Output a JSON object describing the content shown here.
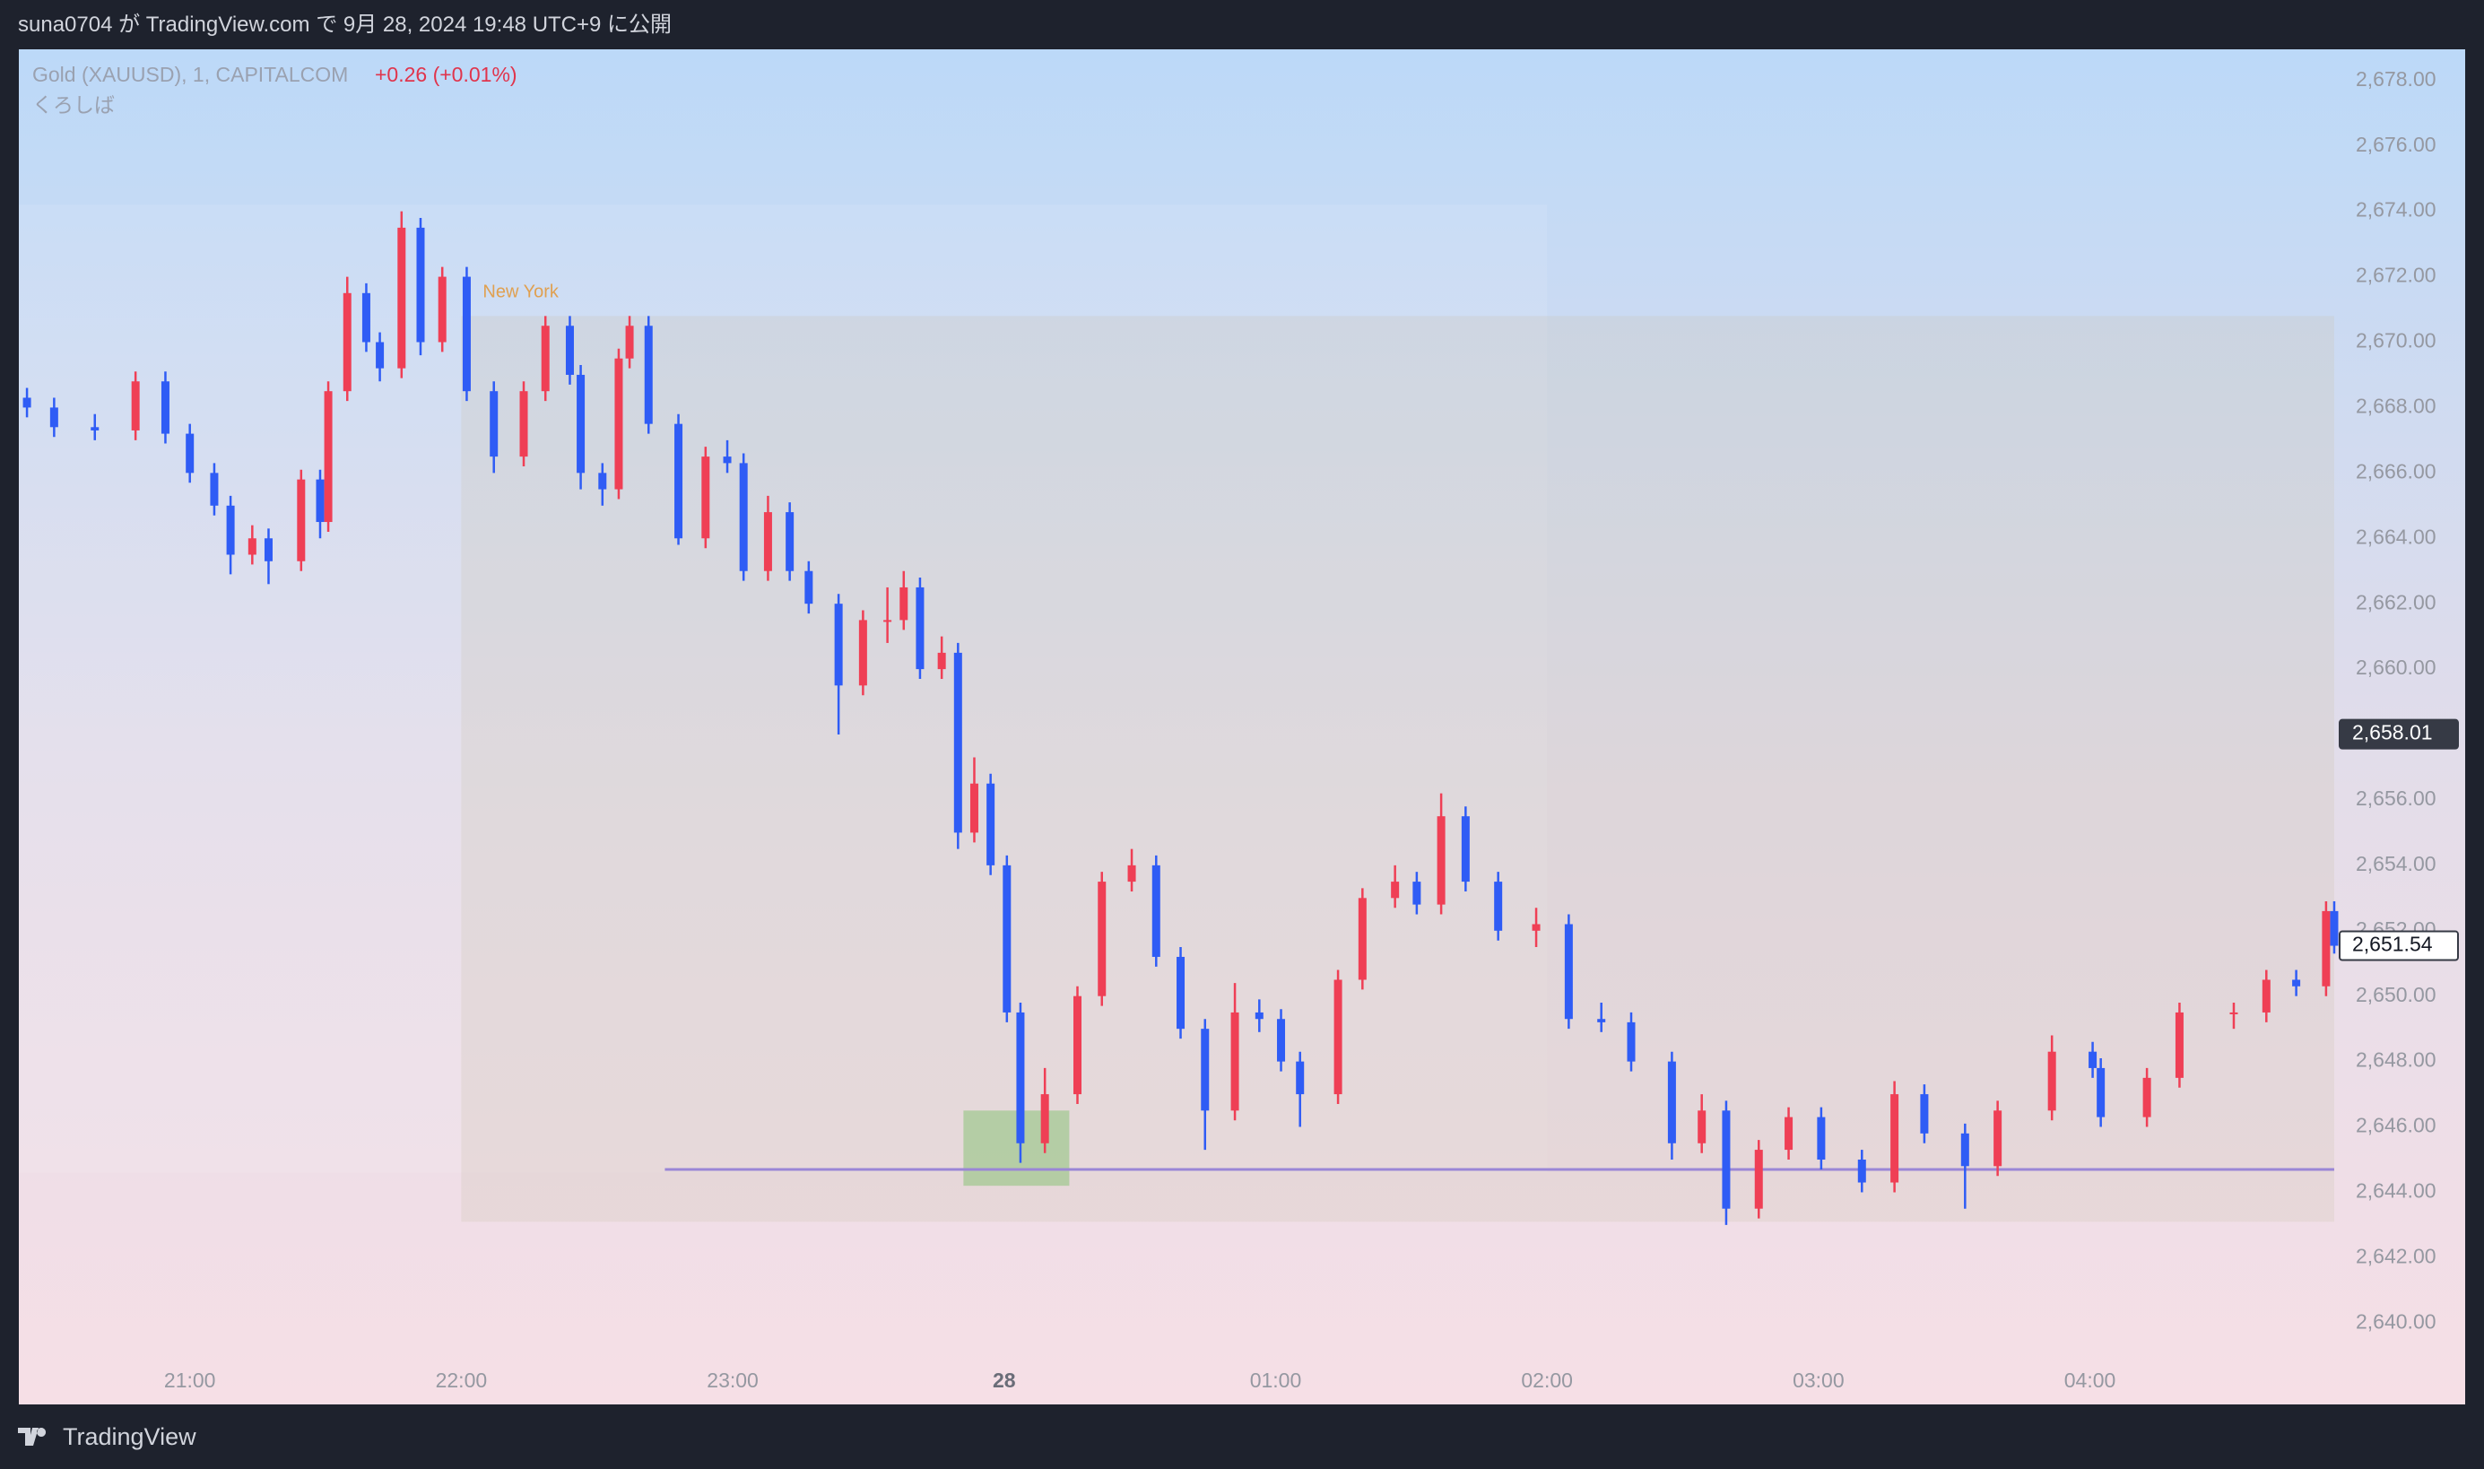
{
  "header": {
    "title": "suna0704 が TradingView.com で 9月 28, 2024 19:48 UTC+9 に公開"
  },
  "footer": {
    "brand": "TradingView"
  },
  "chart_data": {
    "type": "candlestick",
    "symbol": "Gold (XAUUSD), 1, CAPITALCOM",
    "change": "+0.26 (+0.01%)",
    "indicator": "くろしば",
    "up_color": "#ef3f55",
    "down_color": "#2f5cf5",
    "grid": false,
    "xlim": [
      20.37,
      28.91
    ],
    "ylim": [
      2638.5,
      2678.9
    ],
    "xticks": [
      {
        "value": 21,
        "label": "21:00"
      },
      {
        "value": 22,
        "label": "22:00"
      },
      {
        "value": 23,
        "label": "23:00"
      },
      {
        "value": 24,
        "label": "28"
      },
      {
        "value": 25,
        "label": "01:00"
      },
      {
        "value": 26,
        "label": "02:00"
      },
      {
        "value": 27,
        "label": "03:00"
      },
      {
        "value": 28,
        "label": "04:00"
      }
    ],
    "yticks": [
      {
        "value": 2640,
        "label": "2,640.00"
      },
      {
        "value": 2642,
        "label": "2,642.00"
      },
      {
        "value": 2644,
        "label": "2,644.00"
      },
      {
        "value": 2646,
        "label": "2,646.00"
      },
      {
        "value": 2648,
        "label": "2,648.00"
      },
      {
        "value": 2650,
        "label": "2,650.00"
      },
      {
        "value": 2652,
        "label": "2,652.00"
      },
      {
        "value": 2654,
        "label": "2,654.00"
      },
      {
        "value": 2656,
        "label": "2,656.00"
      },
      {
        "value": 2658,
        "label": "2,658.00"
      },
      {
        "value": 2660,
        "label": "2,660.00"
      },
      {
        "value": 2662,
        "label": "2,662.00"
      },
      {
        "value": 2664,
        "label": "2,664.00"
      },
      {
        "value": 2666,
        "label": "2,666.00"
      },
      {
        "value": 2668,
        "label": "2,668.00"
      },
      {
        "value": 2670,
        "label": "2,670.00"
      },
      {
        "value": 2672,
        "label": "2,672.00"
      },
      {
        "value": 2674,
        "label": "2,674.00"
      },
      {
        "value": 2676,
        "label": "2,676.00"
      },
      {
        "value": 2678,
        "label": "2,678.00"
      }
    ],
    "zones": [
      {
        "x": [
          20.37,
          26.0
        ],
        "y": [
          2644.6,
          2674.2
        ],
        "color": "rgba(255,255,255,0.10)"
      },
      {
        "x": [
          22.0,
          28.9
        ],
        "y": [
          2643.1,
          2670.8
        ],
        "color": "rgba(205,195,175,0.25)",
        "label": "New York",
        "label_color": "#e0a050"
      },
      {
        "x": [
          23.85,
          24.24
        ],
        "y": [
          2644.2,
          2646.5
        ],
        "color": "rgba(120,190,100,0.45)"
      }
    ],
    "hline": {
      "x": [
        22.75,
        28.9
      ],
      "value": 2644.7,
      "color": "#9a86d6"
    },
    "price_labels": [
      {
        "value": 2658.01,
        "label": "2,658.01",
        "bg": "#363a45",
        "fg": "#ffffff"
      },
      {
        "value": 2651.54,
        "label": "2,651.54",
        "bg": "#ffffff",
        "fg": "#131722"
      }
    ],
    "x": [
      20.4,
      20.5,
      20.65,
      20.8,
      20.91,
      21.0,
      21.09,
      21.15,
      21.23,
      21.29,
      21.41,
      21.48,
      21.51,
      21.58,
      21.65,
      21.7,
      21.78,
      21.85,
      21.93,
      22.02,
      22.12,
      22.23,
      22.31,
      22.4,
      22.44,
      22.52,
      22.58,
      22.62,
      22.69,
      22.8,
      22.9,
      22.98,
      23.04,
      23.13,
      23.21,
      23.28,
      23.39,
      23.48,
      23.57,
      23.63,
      23.69,
      23.77,
      23.83,
      23.89,
      23.95,
      24.01,
      24.06,
      24.15,
      24.27,
      24.36,
      24.47,
      24.56,
      24.65,
      24.74,
      24.85,
      24.94,
      25.02,
      25.09,
      25.23,
      25.32,
      25.44,
      25.52,
      25.61,
      25.7,
      25.82,
      25.96,
      26.08,
      26.2,
      26.31,
      26.46,
      26.57,
      26.66,
      26.78,
      26.89,
      27.01,
      27.16,
      27.28,
      27.39,
      27.54,
      27.66,
      27.86,
      28.01,
      28.04,
      28.21,
      28.33,
      28.53,
      28.65,
      28.76,
      28.87,
      28.9
    ],
    "ohlc": [
      [
        2668.3,
        2668.6,
        2667.7,
        2668.0
      ],
      [
        2668.0,
        2668.3,
        2667.1,
        2667.4
      ],
      [
        2667.4,
        2667.8,
        2667.0,
        2667.3
      ],
      [
        2667.3,
        2669.1,
        2667.0,
        2668.8
      ],
      [
        2668.8,
        2669.1,
        2666.9,
        2667.2
      ],
      [
        2667.2,
        2667.5,
        2665.7,
        2666.0
      ],
      [
        2666.0,
        2666.3,
        2664.7,
        2665.0
      ],
      [
        2665.0,
        2665.3,
        2662.9,
        2663.5
      ],
      [
        2663.5,
        2664.4,
        2663.2,
        2664.0
      ],
      [
        2664.0,
        2664.3,
        2662.6,
        2663.3
      ],
      [
        2663.3,
        2666.1,
        2663.0,
        2665.8
      ],
      [
        2665.8,
        2666.1,
        2664.0,
        2664.5
      ],
      [
        2664.5,
        2668.8,
        2664.2,
        2668.5
      ],
      [
        2668.5,
        2672.0,
        2668.2,
        2671.5
      ],
      [
        2671.5,
        2671.8,
        2669.7,
        2670.0
      ],
      [
        2670.0,
        2670.3,
        2668.8,
        2669.2
      ],
      [
        2669.2,
        2674.0,
        2668.9,
        2673.5
      ],
      [
        2673.5,
        2673.8,
        2669.6,
        2670.0
      ],
      [
        2670.0,
        2672.3,
        2669.7,
        2672.0
      ],
      [
        2672.0,
        2672.3,
        2668.2,
        2668.5
      ],
      [
        2668.5,
        2668.8,
        2666.0,
        2666.5
      ],
      [
        2666.5,
        2668.8,
        2666.2,
        2668.5
      ],
      [
        2668.5,
        2670.8,
        2668.2,
        2670.5
      ],
      [
        2670.5,
        2670.8,
        2668.7,
        2669.0
      ],
      [
        2669.0,
        2669.3,
        2665.5,
        2666.0
      ],
      [
        2666.0,
        2666.3,
        2665.0,
        2665.5
      ],
      [
        2665.5,
        2669.8,
        2665.2,
        2669.5
      ],
      [
        2669.5,
        2670.8,
        2669.2,
        2670.5
      ],
      [
        2670.5,
        2670.8,
        2667.2,
        2667.5
      ],
      [
        2667.5,
        2667.8,
        2663.8,
        2664.0
      ],
      [
        2664.0,
        2666.8,
        2663.7,
        2666.5
      ],
      [
        2666.5,
        2667.0,
        2666.0,
        2666.3
      ],
      [
        2666.3,
        2666.6,
        2662.7,
        2663.0
      ],
      [
        2663.0,
        2665.3,
        2662.7,
        2664.8
      ],
      [
        2664.8,
        2665.1,
        2662.7,
        2663.0
      ],
      [
        2663.0,
        2663.3,
        2661.7,
        2662.0
      ],
      [
        2662.0,
        2662.3,
        2658.0,
        2659.5
      ],
      [
        2659.5,
        2661.8,
        2659.2,
        2661.5
      ],
      [
        2661.5,
        2662.5,
        2660.8,
        2661.5
      ],
      [
        2661.5,
        2663.0,
        2661.2,
        2662.5
      ],
      [
        2662.5,
        2662.8,
        2659.7,
        2660.0
      ],
      [
        2660.0,
        2661.0,
        2659.7,
        2660.5
      ],
      [
        2660.5,
        2660.8,
        2654.5,
        2655.0
      ],
      [
        2655.0,
        2657.3,
        2654.7,
        2656.5
      ],
      [
        2656.5,
        2656.8,
        2653.7,
        2654.0
      ],
      [
        2654.0,
        2654.3,
        2649.2,
        2649.5
      ],
      [
        2649.5,
        2649.8,
        2644.9,
        2645.5
      ],
      [
        2645.5,
        2647.8,
        2645.2,
        2647.0
      ],
      [
        2647.0,
        2650.3,
        2646.7,
        2650.0
      ],
      [
        2650.0,
        2653.8,
        2649.7,
        2653.5
      ],
      [
        2653.5,
        2654.5,
        2653.2,
        2654.0
      ],
      [
        2654.0,
        2654.3,
        2650.9,
        2651.2
      ],
      [
        2651.2,
        2651.5,
        2648.7,
        2649.0
      ],
      [
        2649.0,
        2649.3,
        2645.3,
        2646.5
      ],
      [
        2646.5,
        2650.4,
        2646.2,
        2649.5
      ],
      [
        2649.5,
        2649.9,
        2648.9,
        2649.3
      ],
      [
        2649.3,
        2649.6,
        2647.7,
        2648.0
      ],
      [
        2648.0,
        2648.3,
        2646.0,
        2647.0
      ],
      [
        2647.0,
        2650.8,
        2646.7,
        2650.5
      ],
      [
        2650.5,
        2653.3,
        2650.2,
        2653.0
      ],
      [
        2653.0,
        2654.0,
        2652.7,
        2653.5
      ],
      [
        2653.5,
        2653.8,
        2652.5,
        2652.8
      ],
      [
        2652.8,
        2656.2,
        2652.5,
        2655.5
      ],
      [
        2655.5,
        2655.8,
        2653.2,
        2653.5
      ],
      [
        2653.5,
        2653.8,
        2651.7,
        2652.0
      ],
      [
        2652.0,
        2652.7,
        2651.5,
        2652.2
      ],
      [
        2652.2,
        2652.5,
        2649.0,
        2649.3
      ],
      [
        2649.3,
        2649.8,
        2648.9,
        2649.2
      ],
      [
        2649.2,
        2649.5,
        2647.7,
        2648.0
      ],
      [
        2648.0,
        2648.3,
        2645.0,
        2645.5
      ],
      [
        2645.5,
        2647.0,
        2645.2,
        2646.5
      ],
      [
        2646.5,
        2646.8,
        2643.0,
        2643.5
      ],
      [
        2643.5,
        2645.6,
        2643.2,
        2645.3
      ],
      [
        2645.3,
        2646.6,
        2645.0,
        2646.3
      ],
      [
        2646.3,
        2646.6,
        2644.7,
        2645.0
      ],
      [
        2645.0,
        2645.3,
        2644.0,
        2644.3
      ],
      [
        2644.3,
        2647.4,
        2644.0,
        2647.0
      ],
      [
        2647.0,
        2647.3,
        2645.5,
        2645.8
      ],
      [
        2645.8,
        2646.1,
        2643.5,
        2644.8
      ],
      [
        2644.8,
        2646.8,
        2644.5,
        2646.5
      ],
      [
        2646.5,
        2648.8,
        2646.2,
        2648.3
      ],
      [
        2648.3,
        2648.6,
        2647.5,
        2647.8
      ],
      [
        2647.8,
        2648.1,
        2646.0,
        2646.3
      ],
      [
        2646.3,
        2647.8,
        2646.0,
        2647.5
      ],
      [
        2647.5,
        2649.8,
        2647.2,
        2649.5
      ],
      [
        2649.5,
        2649.8,
        2649.0,
        2649.5
      ],
      [
        2649.5,
        2650.8,
        2649.2,
        2650.5
      ],
      [
        2650.5,
        2650.8,
        2650.0,
        2650.3
      ],
      [
        2650.3,
        2652.9,
        2650.0,
        2652.6
      ],
      [
        2652.6,
        2652.9,
        2651.3,
        2651.54
      ]
    ]
  }
}
